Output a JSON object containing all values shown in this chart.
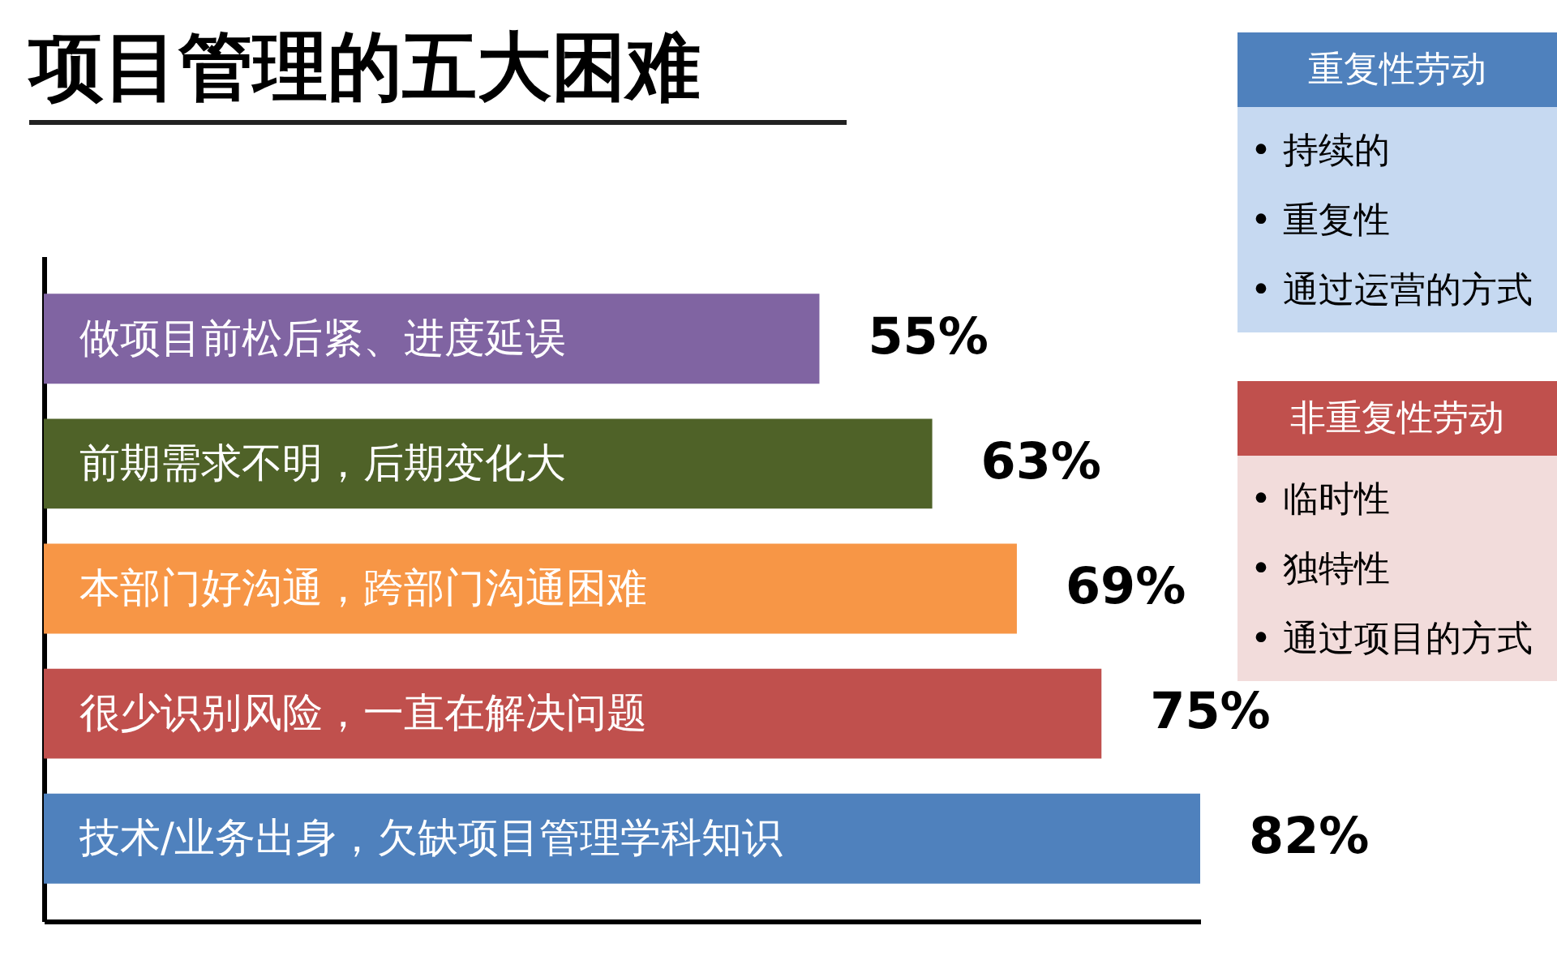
{
  "chart_data": [
    {
      "type": "bar",
      "orientation": "horizontal",
      "title": "项目管理的五大困难",
      "categories": [
        "做项目前松后紧、进度延误",
        "前期需求不明，后期变化大",
        "本部门好沟通，跨部门沟通困难",
        "很少识别风险，一直在解决问题",
        "技术/业务出身，欠缺项目管理学科知识"
      ],
      "values": [
        55,
        63,
        69,
        75,
        82
      ],
      "value_labels": [
        "55%",
        "63%",
        "69%",
        "75%",
        "82%"
      ],
      "colors": [
        "#8064a2",
        "#4f6228",
        "#f79646",
        "#c0504d",
        "#4f81bd"
      ]
    },
    {
      "type": "other",
      "title": "重复性劳动",
      "annotations": [
        "• 持续的",
        "• 重复性",
        "• 通过运营的方式"
      ]
    },
    {
      "type": "other",
      "title": "非重复性劳动",
      "annotations": [
        "• 临时性",
        "• 独特性",
        "• 通过项目的方式"
      ]
    }
  ]
}
